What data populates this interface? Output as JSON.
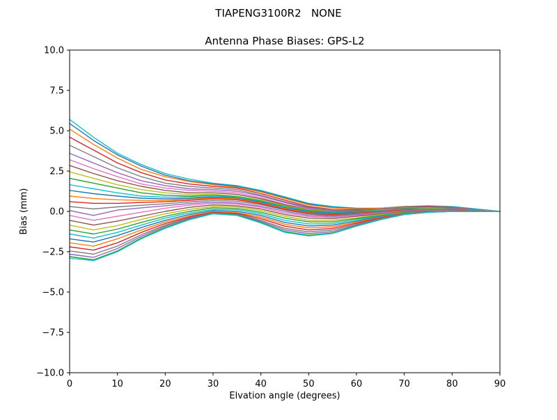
{
  "chart_data": {
    "type": "line",
    "suptitle": "TIAPENG3100R2   NONE",
    "title": "Antenna Phase Biases: GPS-L2",
    "xlabel": "Elvation angle (degrees)",
    "ylabel": "Bias (mm)",
    "xlim": [
      0,
      90
    ],
    "ylim": [
      -10,
      10
    ],
    "x_ticks": [
      0,
      10,
      20,
      30,
      40,
      50,
      60,
      70,
      80,
      90
    ],
    "y_ticks": [
      10.0,
      7.5,
      5.0,
      2.5,
      0.0,
      -2.5,
      -5.0,
      -7.5,
      -10.0
    ],
    "grid": false,
    "legend": "none",
    "frame_color": "#000000",
    "x": [
      0,
      5,
      10,
      15,
      20,
      25,
      30,
      35,
      40,
      45,
      50,
      55,
      60,
      65,
      70,
      75,
      80,
      85,
      90
    ],
    "series": [
      {
        "color": "#17becf",
        "values": [
          5.7,
          4.6,
          3.6,
          2.9,
          2.35,
          2.0,
          1.75,
          1.6,
          1.3,
          0.9,
          0.5,
          0.3,
          0.2,
          0.2,
          0.3,
          0.35,
          0.3,
          0.15,
          0.0
        ]
      },
      {
        "color": "#1f77b4",
        "values": [
          5.45,
          4.4,
          3.5,
          2.8,
          2.25,
          1.9,
          1.7,
          1.55,
          1.25,
          0.85,
          0.45,
          0.25,
          0.18,
          0.2,
          0.3,
          0.32,
          0.27,
          0.12,
          0.0
        ]
      },
      {
        "color": "#ff7f0e",
        "values": [
          5.1,
          4.15,
          3.3,
          2.6,
          2.15,
          1.85,
          1.65,
          1.5,
          1.2,
          0.8,
          0.4,
          0.22,
          0.15,
          0.2,
          0.28,
          0.3,
          0.25,
          0.1,
          0.0
        ]
      },
      {
        "color": "#d62728",
        "values": [
          4.6,
          3.8,
          3.0,
          2.4,
          1.95,
          1.7,
          1.55,
          1.45,
          1.1,
          0.7,
          0.3,
          0.12,
          0.1,
          0.15,
          0.25,
          0.3,
          0.22,
          0.1,
          0.0
        ]
      },
      {
        "color": "#7f7f7f",
        "values": [
          4.1,
          3.4,
          2.7,
          2.15,
          1.75,
          1.55,
          1.45,
          1.35,
          1.0,
          0.6,
          0.25,
          0.1,
          0.05,
          0.15,
          0.25,
          0.27,
          0.2,
          0.1,
          0.0
        ]
      },
      {
        "color": "#9467bd",
        "values": [
          3.6,
          3.0,
          2.4,
          1.9,
          1.6,
          1.4,
          1.35,
          1.25,
          0.95,
          0.55,
          0.2,
          0.05,
          0.02,
          0.12,
          0.22,
          0.25,
          0.2,
          0.1,
          0.0
        ]
      },
      {
        "color": "#e377c2",
        "values": [
          3.2,
          2.65,
          2.15,
          1.7,
          1.45,
          1.3,
          1.25,
          1.15,
          0.85,
          0.45,
          0.15,
          0.0,
          0.0,
          0.1,
          0.2,
          0.22,
          0.15,
          0.08,
          0.0
        ]
      },
      {
        "color": "#8c564b",
        "values": [
          2.85,
          2.35,
          1.9,
          1.55,
          1.3,
          1.15,
          1.15,
          1.05,
          0.78,
          0.4,
          0.1,
          0.0,
          0.0,
          0.1,
          0.18,
          0.2,
          0.15,
          0.06,
          0.0
        ]
      },
      {
        "color": "#bcbd22",
        "values": [
          2.45,
          2.05,
          1.65,
          1.35,
          1.15,
          1.05,
          1.05,
          0.95,
          0.7,
          0.35,
          0.08,
          -0.02,
          0.0,
          0.08,
          0.15,
          0.2,
          0.14,
          0.05,
          0.0
        ]
      },
      {
        "color": "#2ca02c",
        "values": [
          2.05,
          1.75,
          1.45,
          1.15,
          1.0,
          0.95,
          1.0,
          0.9,
          0.65,
          0.3,
          0.05,
          -0.05,
          0.0,
          0.05,
          0.15,
          0.17,
          0.12,
          0.05,
          0.0
        ]
      },
      {
        "color": "#17becf",
        "values": [
          1.65,
          1.4,
          1.15,
          0.95,
          0.88,
          0.88,
          0.92,
          0.88,
          0.6,
          0.27,
          0.0,
          -0.1,
          -0.05,
          0.05,
          0.12,
          0.15,
          0.1,
          0.05,
          0.0
        ]
      },
      {
        "color": "#1f77b4",
        "values": [
          1.3,
          1.1,
          0.95,
          0.82,
          0.78,
          0.8,
          0.88,
          0.82,
          0.57,
          0.22,
          -0.03,
          -0.12,
          -0.07,
          0.02,
          0.1,
          0.13,
          0.1,
          0.04,
          0.0
        ]
      },
      {
        "color": "#ff7f0e",
        "values": [
          0.95,
          0.8,
          0.72,
          0.68,
          0.68,
          0.75,
          0.83,
          0.78,
          0.52,
          0.18,
          -0.08,
          -0.17,
          -0.1,
          0.0,
          0.1,
          0.12,
          0.08,
          0.03,
          0.0
        ]
      },
      {
        "color": "#d62728",
        "values": [
          0.6,
          0.5,
          0.5,
          0.55,
          0.6,
          0.68,
          0.78,
          0.72,
          0.48,
          0.13,
          -0.12,
          -0.2,
          -0.12,
          -0.02,
          0.08,
          0.1,
          0.07,
          0.02,
          0.0
        ]
      },
      {
        "color": "#7f7f7f",
        "values": [
          0.3,
          0.15,
          0.28,
          0.38,
          0.47,
          0.58,
          0.68,
          0.62,
          0.42,
          0.08,
          -0.17,
          -0.25,
          -0.15,
          -0.05,
          0.05,
          0.1,
          0.05,
          0.02,
          0.0
        ]
      },
      {
        "color": "#9467bd",
        "values": [
          0.05,
          -0.25,
          0.08,
          0.22,
          0.35,
          0.48,
          0.58,
          0.52,
          0.32,
          0.0,
          -0.25,
          -0.3,
          -0.2,
          -0.08,
          0.03,
          0.07,
          0.04,
          0.0,
          0.0
        ]
      },
      {
        "color": "#e377c2",
        "values": [
          -0.25,
          -0.55,
          -0.3,
          -0.05,
          0.2,
          0.38,
          0.5,
          0.45,
          0.25,
          -0.1,
          -0.32,
          -0.37,
          -0.25,
          -0.1,
          0.0,
          0.05,
          0.02,
          0.0,
          0.0
        ]
      },
      {
        "color": "#8c564b",
        "values": [
          -0.55,
          -0.85,
          -0.6,
          -0.3,
          0.0,
          0.25,
          0.4,
          0.35,
          0.15,
          -0.2,
          -0.42,
          -0.45,
          -0.3,
          -0.15,
          -0.02,
          0.03,
          0.0,
          0.0,
          0.0
        ]
      },
      {
        "color": "#bcbd22",
        "values": [
          -0.85,
          -1.15,
          -0.88,
          -0.5,
          -0.15,
          0.12,
          0.3,
          0.27,
          0.05,
          -0.3,
          -0.55,
          -0.55,
          -0.4,
          -0.2,
          -0.05,
          0.0,
          0.0,
          0.0,
          0.0
        ]
      },
      {
        "color": "#2ca02c",
        "values": [
          -1.15,
          -1.4,
          -1.1,
          -0.68,
          -0.3,
          0.0,
          0.22,
          0.18,
          -0.05,
          -0.42,
          -0.65,
          -0.65,
          -0.45,
          -0.25,
          -0.07,
          0.0,
          0.0,
          0.0,
          0.0
        ]
      },
      {
        "color": "#17becf",
        "values": [
          -1.4,
          -1.65,
          -1.3,
          -0.85,
          -0.42,
          -0.1,
          0.12,
          0.1,
          -0.15,
          -0.55,
          -0.78,
          -0.75,
          -0.52,
          -0.28,
          -0.1,
          -0.02,
          0.0,
          0.0,
          0.0
        ]
      },
      {
        "color": "#1f77b4",
        "values": [
          -1.7,
          -1.9,
          -1.5,
          -1.0,
          -0.55,
          -0.2,
          0.05,
          0.0,
          -0.25,
          -0.68,
          -0.9,
          -0.85,
          -0.6,
          -0.32,
          -0.12,
          -0.03,
          0.0,
          0.0,
          0.0
        ]
      },
      {
        "color": "#ff7f0e",
        "values": [
          -1.95,
          -2.15,
          -1.7,
          -1.15,
          -0.65,
          -0.28,
          -0.02,
          -0.08,
          -0.35,
          -0.8,
          -1.02,
          -0.95,
          -0.67,
          -0.36,
          -0.13,
          -0.04,
          0.0,
          0.0,
          0.0
        ]
      },
      {
        "color": "#d62728",
        "values": [
          -2.2,
          -2.4,
          -1.95,
          -1.3,
          -0.75,
          -0.35,
          -0.05,
          -0.12,
          -0.45,
          -0.92,
          -1.15,
          -1.05,
          -0.73,
          -0.4,
          -0.15,
          -0.05,
          0.0,
          0.0,
          0.0
        ]
      },
      {
        "color": "#7f7f7f",
        "values": [
          -2.45,
          -2.65,
          -2.15,
          -1.45,
          -0.85,
          -0.4,
          -0.08,
          -0.17,
          -0.55,
          -1.05,
          -1.27,
          -1.15,
          -0.8,
          -0.44,
          -0.16,
          -0.05,
          0.0,
          0.0,
          0.0
        ]
      },
      {
        "color": "#9467bd",
        "values": [
          -2.65,
          -2.85,
          -2.3,
          -1.55,
          -0.92,
          -0.45,
          -0.1,
          -0.2,
          -0.62,
          -1.15,
          -1.38,
          -1.25,
          -0.85,
          -0.47,
          -0.18,
          -0.05,
          0.0,
          0.0,
          0.0
        ]
      },
      {
        "color": "#2ca02c",
        "values": [
          -2.8,
          -3.0,
          -2.45,
          -1.65,
          -1.0,
          -0.5,
          -0.12,
          -0.22,
          -0.68,
          -1.25,
          -1.48,
          -1.33,
          -0.9,
          -0.5,
          -0.2,
          -0.06,
          0.0,
          0.0,
          0.0
        ]
      },
      {
        "color": "#17becf",
        "values": [
          -2.9,
          -3.05,
          -2.5,
          -1.7,
          -1.05,
          -0.52,
          -0.15,
          -0.25,
          -0.72,
          -1.3,
          -1.52,
          -1.37,
          -0.92,
          -0.52,
          -0.2,
          -0.06,
          0.0,
          0.0,
          0.0
        ]
      }
    ]
  }
}
